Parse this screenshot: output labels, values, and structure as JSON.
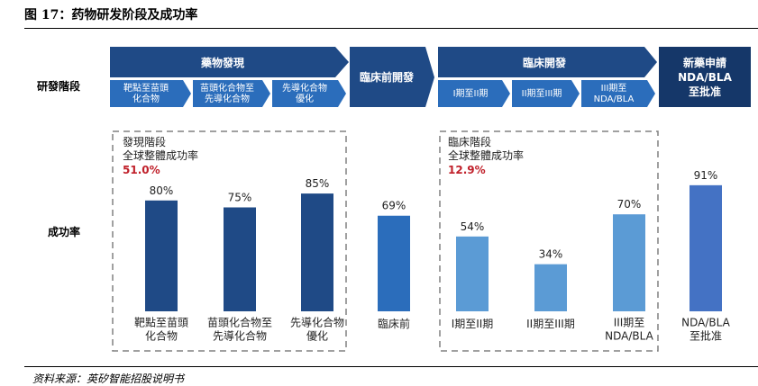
{
  "figure": {
    "title": "图 17：药物研发阶段及成功率",
    "source": "资料来源：英矽智能招股说明书"
  },
  "row_labels": {
    "stages": "研發階段",
    "rate": "成功率"
  },
  "stages": {
    "discovery": {
      "label": "藥物發現",
      "substeps": [
        "靶點至苗頭\n化合物",
        "苗頭化合物至\n先導化合物",
        "先導化合物\n優化"
      ]
    },
    "preclinical": {
      "label": "臨床前開發"
    },
    "clinical": {
      "label": "臨床開發",
      "substeps": [
        "I期至II期",
        "II期至III期",
        "III期至\nNDA/BLA"
      ]
    },
    "nda": {
      "label": "新藥申請\nNDA/BLA\n至批准"
    }
  },
  "groups": {
    "discovery": {
      "title": "發現階段",
      "subtitle": "全球整體成功率",
      "rate": "51.0%"
    },
    "clinical": {
      "title": "臨床階段",
      "subtitle": "全球整體成功率",
      "rate": "12.9%"
    }
  },
  "chart_data": {
    "type": "bar",
    "ylabel": "成功率",
    "categories": [
      "靶點至苗頭\n化合物",
      "苗頭化合物至\n先導化合物",
      "先導化合物\n優化",
      "臨床前",
      "I期至II期",
      "II期至III期",
      "III期至\nNDA/BLA",
      "NDA/BLA\n至批准"
    ],
    "values": [
      80,
      75,
      85,
      69,
      54,
      34,
      70,
      91
    ],
    "value_labels": [
      "80%",
      "75%",
      "85%",
      "69%",
      "54%",
      "34%",
      "70%",
      "91%"
    ],
    "ylim": [
      0,
      100
    ],
    "colors": [
      "#1f4a86",
      "#1f4a86",
      "#1f4a86",
      "#2b6dbb",
      "#5b9bd5",
      "#5b9bd5",
      "#5b9bd5",
      "#4472c4"
    ]
  },
  "colors": {
    "banner": "#1f4a86",
    "preclinical": "#1f4a86",
    "nda_banner": "#153769",
    "highlight": "#c0202a"
  }
}
